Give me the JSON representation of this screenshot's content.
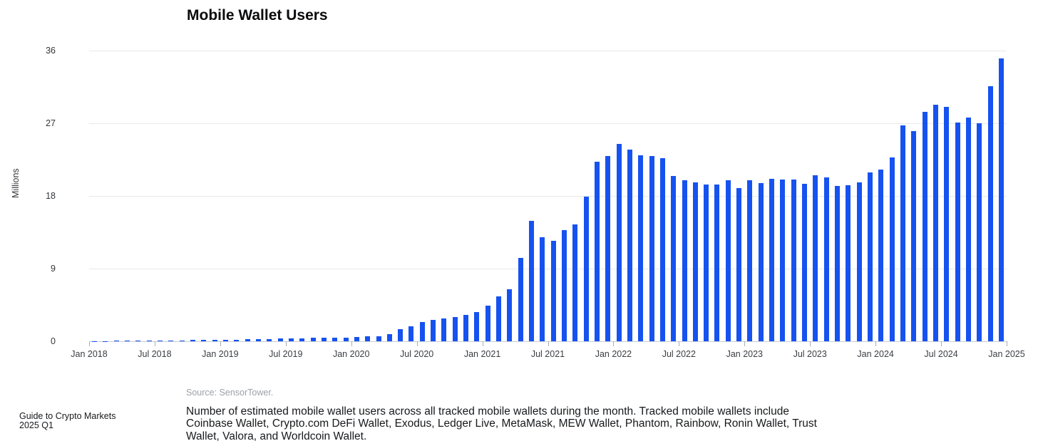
{
  "page": {
    "footer": "Guide to Crypto Markets 2025 Q1"
  },
  "source": "Source: SensorTower.",
  "description": "Number of estimated mobile wallet users across all tracked mobile wallets during the month. Tracked mobile wallets include Coinbase Wallet, Crypto.com DeFi Wallet, Exodus, Ledger Live, MetaMask, MEW Wallet, Phantom, Rainbow, Ronin Wallet, Trust Wallet, Valora, and Worldcoin Wallet.",
  "chart_data": {
    "type": "bar",
    "title": "Mobile Wallet Users",
    "xlabel": "",
    "ylabel": "Millions",
    "ylim": [
      0,
      36
    ],
    "yticks": [
      0,
      9,
      18,
      27,
      36
    ],
    "grid": "horizontal",
    "legend": "none",
    "bar_color": "#1652f0",
    "x_freq": "monthly",
    "categories": [
      "Jan 2018",
      "Feb 2018",
      "Mar 2018",
      "Apr 2018",
      "May 2018",
      "Jun 2018",
      "Jul 2018",
      "Aug 2018",
      "Sep 2018",
      "Oct 2018",
      "Nov 2018",
      "Dec 2018",
      "Jan 2019",
      "Feb 2019",
      "Mar 2019",
      "Apr 2019",
      "May 2019",
      "Jun 2019",
      "Jul 2019",
      "Aug 2019",
      "Sep 2019",
      "Oct 2019",
      "Nov 2019",
      "Dec 2019",
      "Jan 2020",
      "Feb 2020",
      "Mar 2020",
      "Apr 2020",
      "May 2020",
      "Jun 2020",
      "Jul 2020",
      "Aug 2020",
      "Sep 2020",
      "Oct 2020",
      "Nov 2020",
      "Dec 2020",
      "Jan 2021",
      "Feb 2021",
      "Mar 2021",
      "Apr 2021",
      "May 2021",
      "Jun 2021",
      "Jul 2021",
      "Aug 2021",
      "Sep 2021",
      "Oct 2021",
      "Nov 2021",
      "Dec 2021",
      "Jan 2022",
      "Feb 2022",
      "Mar 2022",
      "Apr 2022",
      "May 2022",
      "Jun 2022",
      "Jul 2022",
      "Aug 2022",
      "Sep 2022",
      "Oct 2022",
      "Nov 2022",
      "Dec 2022",
      "Jan 2023",
      "Feb 2023",
      "Mar 2023",
      "Apr 2023",
      "May 2023",
      "Jun 2023",
      "Jul 2023",
      "Aug 2023",
      "Sep 2023",
      "Oct 2023",
      "Nov 2023",
      "Dec 2023",
      "Jan 2024",
      "Feb 2024",
      "Mar 2024",
      "Apr 2024",
      "May 2024",
      "Jun 2024",
      "Jul 2024",
      "Aug 2024",
      "Sep 2024",
      "Oct 2024",
      "Nov 2024",
      "Dec 2024"
    ],
    "series": [
      {
        "name": "Mobile wallet users (millions)",
        "values": [
          0.03,
          0.04,
          0.05,
          0.06,
          0.07,
          0.08,
          0.09,
          0.1,
          0.12,
          0.14,
          0.16,
          0.18,
          0.2,
          0.22,
          0.25,
          0.28,
          0.3,
          0.33,
          0.35,
          0.36,
          0.4,
          0.44,
          0.45,
          0.48,
          0.5,
          0.6,
          0.65,
          0.9,
          1.5,
          1.85,
          2.4,
          2.65,
          2.8,
          3.0,
          3.3,
          3.65,
          4.4,
          5.6,
          6.4,
          10.3,
          14.9,
          12.9,
          12.4,
          13.8,
          14.5,
          17.9,
          22.2,
          22.9,
          24.4,
          23.7,
          23.0,
          22.9,
          22.7,
          20.5,
          19.9,
          19.7,
          19.4,
          19.4,
          19.9,
          19.0,
          19.9,
          19.6,
          20.1,
          20.0,
          20.0,
          19.5,
          20.6,
          20.3,
          19.2,
          19.3,
          19.7,
          20.9,
          21.3,
          22.8,
          26.7,
          26.0,
          28.4,
          29.3,
          29.0,
          27.1,
          27.7,
          27.0,
          31.6,
          35.0
        ]
      }
    ],
    "xticks": [
      {
        "label": "Jan 2018",
        "m": 0
      },
      {
        "label": "Jul 2018",
        "m": 6
      },
      {
        "label": "Jan 2019",
        "m": 12
      },
      {
        "label": "Jul 2019",
        "m": 18
      },
      {
        "label": "Jan 2020",
        "m": 24
      },
      {
        "label": "Jul 2020",
        "m": 30
      },
      {
        "label": "Jan 2021",
        "m": 36
      },
      {
        "label": "Jul 2021",
        "m": 42
      },
      {
        "label": "Jan 2022",
        "m": 48
      },
      {
        "label": "Jul 2022",
        "m": 54
      },
      {
        "label": "Jan 2023",
        "m": 60
      },
      {
        "label": "Jul 2023",
        "m": 66
      },
      {
        "label": "Jan 2024",
        "m": 72
      },
      {
        "label": "Jul 2024",
        "m": 78
      },
      {
        "label": "Jan 2025",
        "m": 84
      }
    ]
  }
}
